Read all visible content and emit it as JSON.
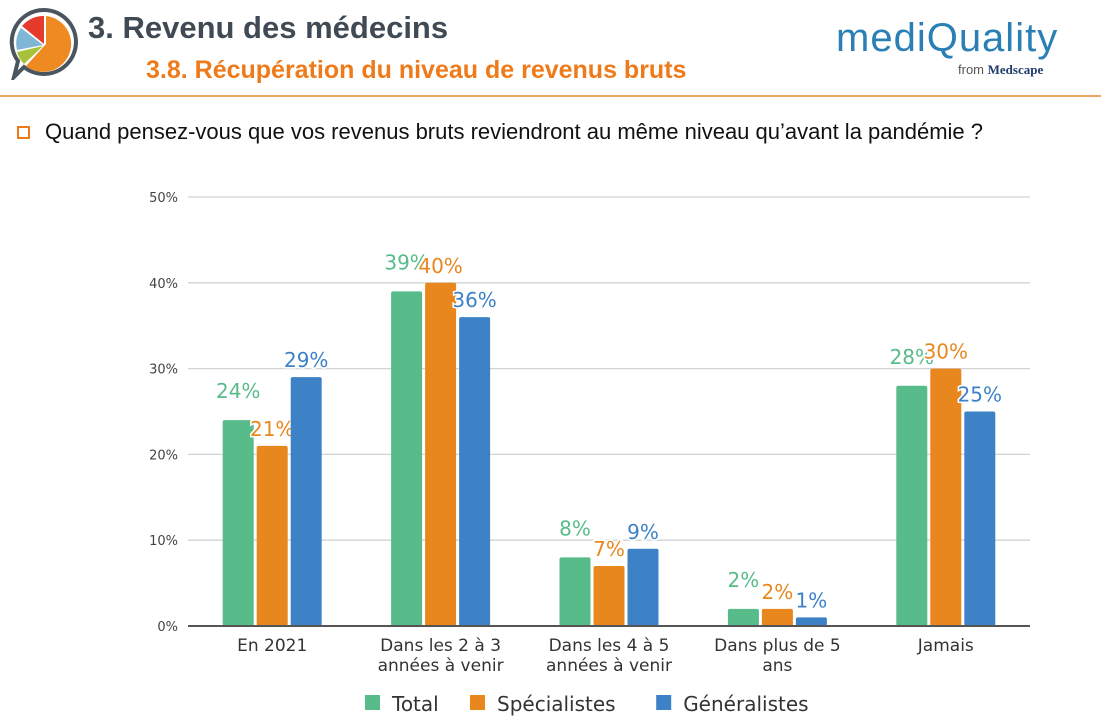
{
  "header": {
    "title": "3. Revenu des médecins",
    "subtitle": "3.8. Récupération du niveau de revenus bruts",
    "logo_text": "mediQuality",
    "logo_from": "from",
    "logo_brand": "Medscape"
  },
  "question": "Quand pensez-vous que vos revenus bruts reviendront au même niveau qu’avant la pandémie ?",
  "chart_data": {
    "type": "bar",
    "categories": [
      [
        "En 2021"
      ],
      [
        "Dans les 2 à 3",
        "années à venir"
      ],
      [
        "Dans les 4 à 5",
        "années à venir"
      ],
      [
        "Dans plus de 5",
        "ans"
      ],
      [
        "Jamais"
      ]
    ],
    "series": [
      {
        "name": "Total",
        "color": "#57bb8a",
        "values": [
          24,
          39,
          8,
          2,
          28
        ],
        "labels": [
          "24%",
          "39%",
          "8%",
          "2%",
          "28%"
        ]
      },
      {
        "name": "Spécialistes",
        "color": "#e8871e",
        "values": [
          21,
          40,
          7,
          2,
          30
        ],
        "labels": [
          "21%",
          "40%",
          "7%",
          "2%",
          "30%"
        ]
      },
      {
        "name": "Généralistes",
        "color": "#3d82c7",
        "values": [
          29,
          36,
          9,
          1,
          25
        ],
        "labels": [
          "29%",
          "36%",
          "9%",
          "1%",
          "25%"
        ]
      }
    ],
    "yticks": [
      "0%",
      "10%",
      "20%",
      "30%",
      "40%",
      "50%"
    ],
    "ylim": [
      0,
      50
    ],
    "grid": true,
    "legend": "bottom"
  }
}
